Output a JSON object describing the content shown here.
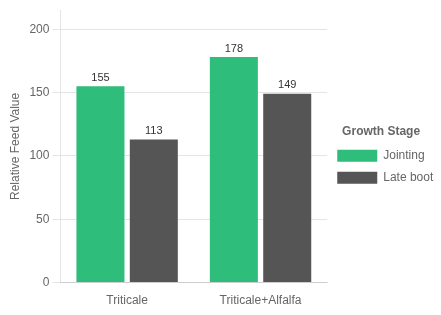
{
  "chart_data": {
    "type": "bar",
    "categories": [
      "Triticale",
      "Triticale+Alfalfa"
    ],
    "series": [
      {
        "name": "Jointing",
        "color": "#2ebd7a",
        "values": [
          155,
          178
        ]
      },
      {
        "name": "Late boot",
        "color": "#555555",
        "values": [
          113,
          149
        ]
      }
    ],
    "ylabel": "Relative Feed Value",
    "ylim": [
      0,
      215
    ],
    "yticks": [
      0,
      50,
      100,
      150,
      200
    ],
    "grid": true,
    "legend": "right",
    "legend_title": "Growth Stage",
    "data_labels": true
  }
}
